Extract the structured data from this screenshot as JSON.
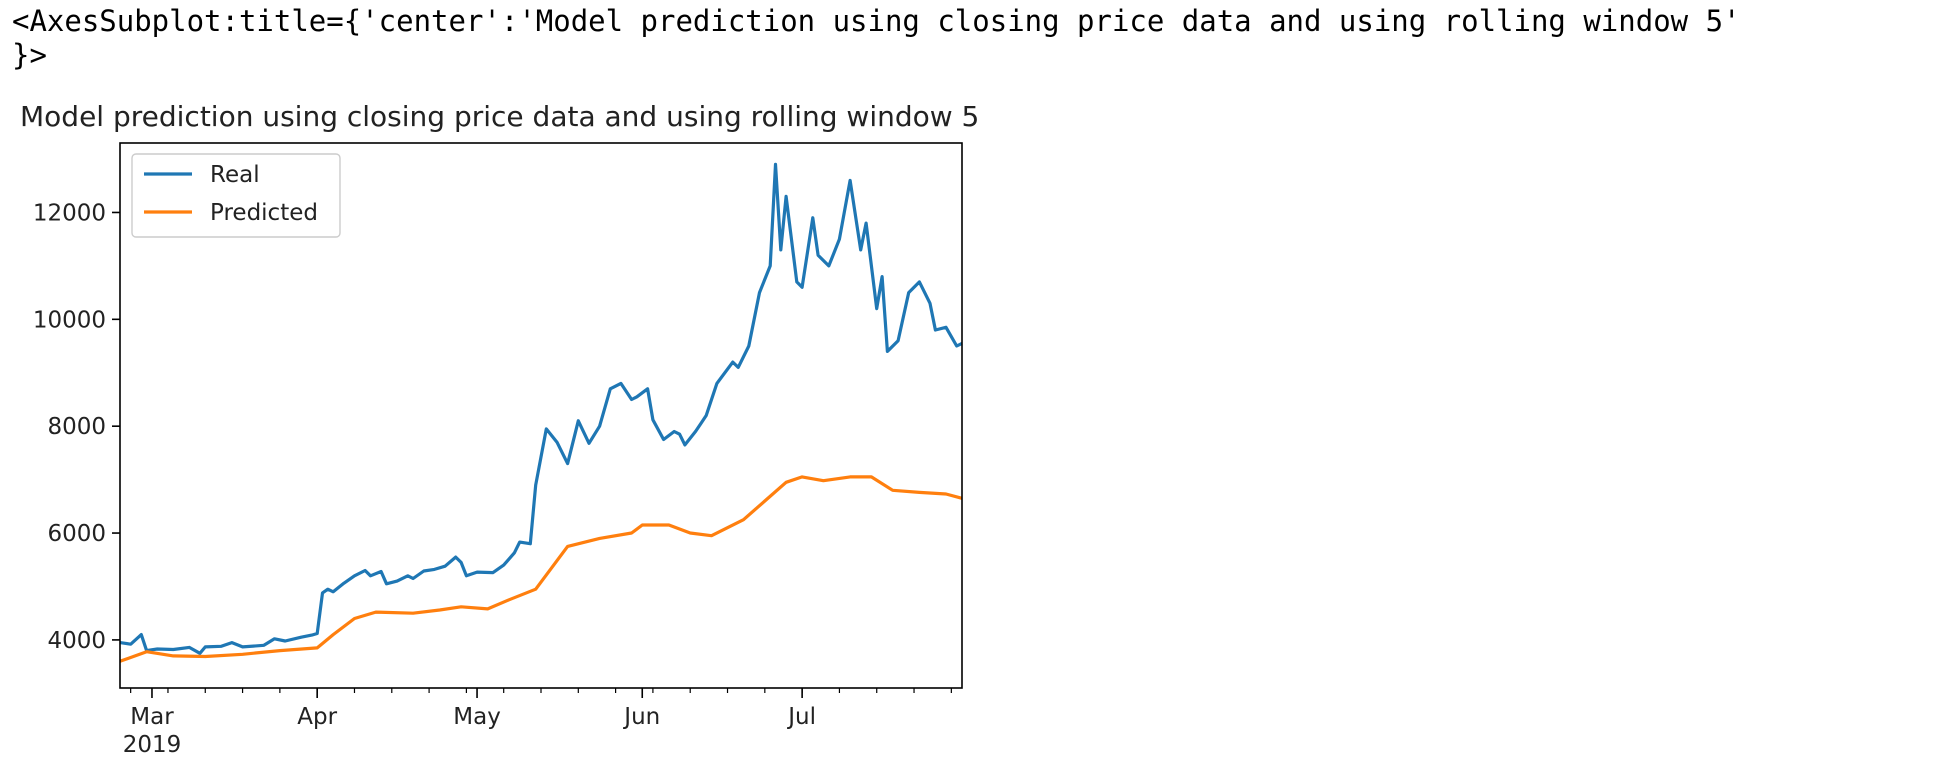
{
  "output_repr": {
    "line1": "<AxesSubplot:title={'center':'Model prediction using closing price data and using rolling window 5'",
    "line2": "}>"
  },
  "chart_data": {
    "type": "line",
    "title": "Model prediction using closing price data and using rolling window 5",
    "xlabel": "",
    "ylabel": "",
    "x_range": [
      "2019-02-23",
      "2019-07-31"
    ],
    "ylim": [
      3100,
      13300
    ],
    "y_ticks": [
      4000,
      6000,
      8000,
      10000,
      12000
    ],
    "x_ticks": [
      {
        "date": "2019-03-01",
        "label": "Mar",
        "sublabel": "2019"
      },
      {
        "date": "2019-04-01",
        "label": "Apr",
        "sublabel": ""
      },
      {
        "date": "2019-05-01",
        "label": "May",
        "sublabel": ""
      },
      {
        "date": "2019-06-01",
        "label": "Jun",
        "sublabel": ""
      },
      {
        "date": "2019-07-01",
        "label": "Jul",
        "sublabel": ""
      }
    ],
    "grid": false,
    "legend_position": "upper-left",
    "series": [
      {
        "name": "Real",
        "color": "#1f77b4",
        "points": [
          [
            "2019-02-23",
            3950
          ],
          [
            "2019-02-25",
            3920
          ],
          [
            "2019-02-27",
            4100
          ],
          [
            "2019-02-28",
            3800
          ],
          [
            "2019-03-02",
            3830
          ],
          [
            "2019-03-05",
            3820
          ],
          [
            "2019-03-08",
            3860
          ],
          [
            "2019-03-10",
            3750
          ],
          [
            "2019-03-11",
            3870
          ],
          [
            "2019-03-14",
            3880
          ],
          [
            "2019-03-16",
            3950
          ],
          [
            "2019-03-18",
            3870
          ],
          [
            "2019-03-22",
            3900
          ],
          [
            "2019-03-24",
            4020
          ],
          [
            "2019-03-26",
            3980
          ],
          [
            "2019-03-29",
            4050
          ],
          [
            "2019-03-31",
            4090
          ],
          [
            "2019-04-01",
            4120
          ],
          [
            "2019-04-02",
            4880
          ],
          [
            "2019-04-03",
            4950
          ],
          [
            "2019-04-04",
            4900
          ],
          [
            "2019-04-06",
            5060
          ],
          [
            "2019-04-08",
            5200
          ],
          [
            "2019-04-10",
            5300
          ],
          [
            "2019-04-11",
            5200
          ],
          [
            "2019-04-13",
            5280
          ],
          [
            "2019-04-14",
            5050
          ],
          [
            "2019-04-16",
            5100
          ],
          [
            "2019-04-18",
            5200
          ],
          [
            "2019-04-19",
            5150
          ],
          [
            "2019-04-21",
            5290
          ],
          [
            "2019-04-23",
            5320
          ],
          [
            "2019-04-25",
            5380
          ],
          [
            "2019-04-27",
            5550
          ],
          [
            "2019-04-28",
            5450
          ],
          [
            "2019-04-29",
            5200
          ],
          [
            "2019-05-01",
            5270
          ],
          [
            "2019-05-04",
            5260
          ],
          [
            "2019-05-06",
            5400
          ],
          [
            "2019-05-08",
            5630
          ],
          [
            "2019-05-09",
            5830
          ],
          [
            "2019-05-11",
            5800
          ],
          [
            "2019-05-12",
            6900
          ],
          [
            "2019-05-14",
            7950
          ],
          [
            "2019-05-16",
            7700
          ],
          [
            "2019-05-18",
            7300
          ],
          [
            "2019-05-20",
            8100
          ],
          [
            "2019-05-22",
            7680
          ],
          [
            "2019-05-24",
            8000
          ],
          [
            "2019-05-26",
            8700
          ],
          [
            "2019-05-28",
            8800
          ],
          [
            "2019-05-30",
            8500
          ],
          [
            "2019-05-31",
            8550
          ],
          [
            "2019-06-02",
            8700
          ],
          [
            "2019-06-03",
            8120
          ],
          [
            "2019-06-05",
            7750
          ],
          [
            "2019-06-07",
            7900
          ],
          [
            "2019-06-08",
            7850
          ],
          [
            "2019-06-09",
            7650
          ],
          [
            "2019-06-11",
            7900
          ],
          [
            "2019-06-12",
            8050
          ],
          [
            "2019-06-13",
            8200
          ],
          [
            "2019-06-15",
            8800
          ],
          [
            "2019-06-18",
            9200
          ],
          [
            "2019-06-19",
            9100
          ],
          [
            "2019-06-21",
            9500
          ],
          [
            "2019-06-23",
            10500
          ],
          [
            "2019-06-25",
            11000
          ],
          [
            "2019-06-26",
            12900
          ],
          [
            "2019-06-27",
            11300
          ],
          [
            "2019-06-28",
            12300
          ],
          [
            "2019-06-30",
            10700
          ],
          [
            "2019-07-01",
            10600
          ],
          [
            "2019-07-03",
            11900
          ],
          [
            "2019-07-04",
            11200
          ],
          [
            "2019-07-06",
            11000
          ],
          [
            "2019-07-08",
            11500
          ],
          [
            "2019-07-10",
            12600
          ],
          [
            "2019-07-12",
            11300
          ],
          [
            "2019-07-13",
            11800
          ],
          [
            "2019-07-15",
            10200
          ],
          [
            "2019-07-16",
            10800
          ],
          [
            "2019-07-17",
            9400
          ],
          [
            "2019-07-19",
            9600
          ],
          [
            "2019-07-21",
            10500
          ],
          [
            "2019-07-23",
            10700
          ],
          [
            "2019-07-25",
            10300
          ],
          [
            "2019-07-26",
            9800
          ],
          [
            "2019-07-28",
            9850
          ],
          [
            "2019-07-30",
            9500
          ],
          [
            "2019-07-31",
            9550
          ]
        ]
      },
      {
        "name": "Predicted",
        "color": "#ff7f0e",
        "points": [
          [
            "2019-02-23",
            3600
          ],
          [
            "2019-02-28",
            3780
          ],
          [
            "2019-03-05",
            3700
          ],
          [
            "2019-03-11",
            3690
          ],
          [
            "2019-03-18",
            3730
          ],
          [
            "2019-03-25",
            3800
          ],
          [
            "2019-04-01",
            3850
          ],
          [
            "2019-04-04",
            4100
          ],
          [
            "2019-04-08",
            4400
          ],
          [
            "2019-04-12",
            4520
          ],
          [
            "2019-04-19",
            4500
          ],
          [
            "2019-04-24",
            4560
          ],
          [
            "2019-04-28",
            4620
          ],
          [
            "2019-05-03",
            4580
          ],
          [
            "2019-05-07",
            4750
          ],
          [
            "2019-05-12",
            4950
          ],
          [
            "2019-05-18",
            5750
          ],
          [
            "2019-05-24",
            5900
          ],
          [
            "2019-05-30",
            6000
          ],
          [
            "2019-06-01",
            6150
          ],
          [
            "2019-06-06",
            6150
          ],
          [
            "2019-06-10",
            6000
          ],
          [
            "2019-06-14",
            5950
          ],
          [
            "2019-06-20",
            6250
          ],
          [
            "2019-06-24",
            6600
          ],
          [
            "2019-06-28",
            6950
          ],
          [
            "2019-07-01",
            7050
          ],
          [
            "2019-07-05",
            6980
          ],
          [
            "2019-07-10",
            7050
          ],
          [
            "2019-07-14",
            7050
          ],
          [
            "2019-07-18",
            6800
          ],
          [
            "2019-07-23",
            6760
          ],
          [
            "2019-07-28",
            6730
          ],
          [
            "2019-07-31",
            6650
          ]
        ]
      }
    ]
  }
}
